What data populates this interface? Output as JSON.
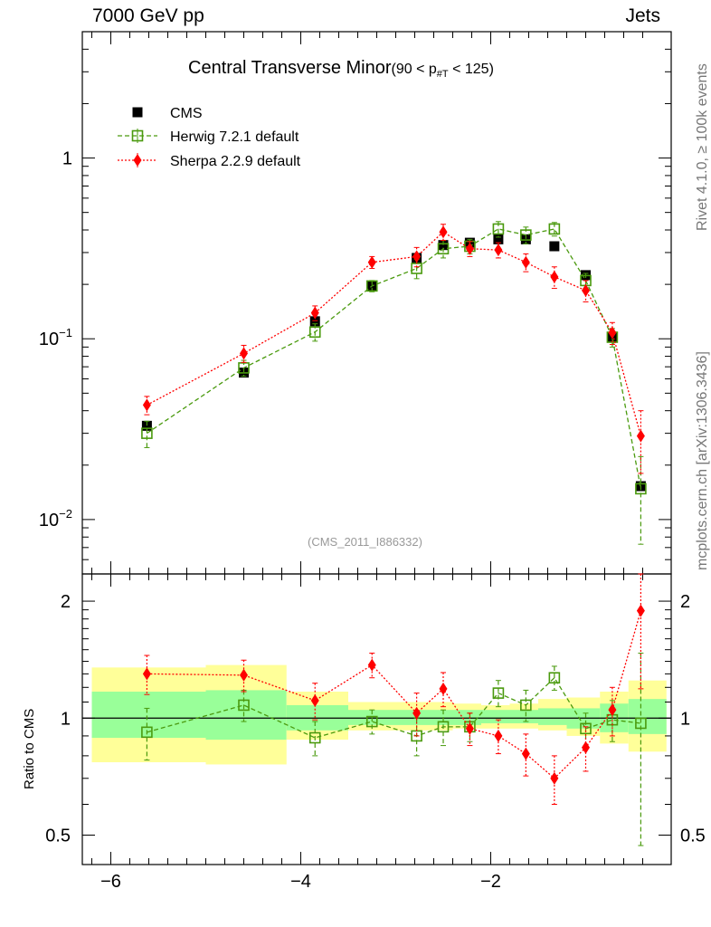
{
  "header": {
    "energy_label": "7000 GeV pp",
    "category_label": "Jets",
    "rivet_label": "Rivet 4.1.0, ≥ 100k events",
    "mcplots_label": "mcplots.cern.ch [arXiv:1306.3436]",
    "analysis_label": "(CMS_2011_I886332)"
  },
  "chart_data": {
    "type": "scatter",
    "title": "Central Transverse Minor",
    "title_cut": "(90 < p",
    "title_cut_sub": "#T",
    "title_cut_end": " < 125)",
    "xlim": [
      -6.3,
      -0.1
    ],
    "x_ticks": [
      -6,
      -4,
      -2
    ],
    "x_tick_labels": [
      "−6",
      "−4",
      "−2"
    ],
    "main_panel": {
      "yscale": "log",
      "ylim": [
        0.005,
        5
      ],
      "y_tick_labels": [
        {
          "value": 1,
          "base": "1",
          "exp": ""
        },
        {
          "value": 0.1,
          "base": "10",
          "exp": "−1"
        },
        {
          "value": 0.01,
          "base": "10",
          "exp": "−2"
        }
      ]
    },
    "ratio_panel": {
      "ylabel": "Ratio to CMS",
      "yscale": "log",
      "ylim": [
        0.42,
        2.35
      ],
      "y_tick_labels": [
        {
          "value": 2,
          "label": "2"
        },
        {
          "value": 1,
          "label": "1"
        },
        {
          "value": 0.5,
          "label": "0.5"
        }
      ],
      "band_bins": [
        {
          "lo": -6.2,
          "hi": -5.0,
          "stat": [
            0.89,
            1.17
          ],
          "total": [
            0.77,
            1.35
          ]
        },
        {
          "lo": -5.0,
          "hi": -4.15,
          "stat": [
            0.88,
            1.18
          ],
          "total": [
            0.76,
            1.37
          ]
        },
        {
          "lo": -4.15,
          "hi": -3.5,
          "stat": [
            0.93,
            1.08
          ],
          "total": [
            0.88,
            1.17
          ]
        },
        {
          "lo": -3.5,
          "hi": -2.9,
          "stat": [
            0.96,
            1.05
          ],
          "total": [
            0.93,
            1.1
          ]
        },
        {
          "lo": -2.9,
          "hi": -2.6,
          "stat": [
            0.96,
            1.05
          ],
          "total": [
            0.93,
            1.1
          ]
        },
        {
          "lo": -2.6,
          "hi": -2.4,
          "stat": [
            0.96,
            1.05
          ],
          "total": [
            0.93,
            1.1
          ]
        },
        {
          "lo": -2.4,
          "hi": -2.1,
          "stat": [
            0.96,
            1.05
          ],
          "total": [
            0.94,
            1.09
          ]
        },
        {
          "lo": -2.1,
          "hi": -1.8,
          "stat": [
            0.97,
            1.05
          ],
          "total": [
            0.94,
            1.08
          ]
        },
        {
          "lo": -1.8,
          "hi": -1.5,
          "stat": [
            0.97,
            1.05
          ],
          "total": [
            0.94,
            1.09
          ]
        },
        {
          "lo": -1.5,
          "hi": -1.2,
          "stat": [
            0.96,
            1.06
          ],
          "total": [
            0.93,
            1.12
          ]
        },
        {
          "lo": -1.2,
          "hi": -0.85,
          "stat": [
            0.94,
            1.06
          ],
          "total": [
            0.9,
            1.13
          ]
        },
        {
          "lo": -0.85,
          "hi": -0.55,
          "stat": [
            0.92,
            1.09
          ],
          "total": [
            0.86,
            1.17
          ]
        },
        {
          "lo": -0.55,
          "hi": -0.15,
          "stat": [
            0.91,
            1.12
          ],
          "total": [
            0.82,
            1.25
          ]
        }
      ]
    },
    "series": [
      {
        "name": "CMS",
        "color": "#000000",
        "marker": "filled-square",
        "x": [
          -5.62,
          -4.6,
          -3.85,
          -3.25,
          -2.78,
          -2.5,
          -2.22,
          -1.92,
          -1.63,
          -1.33,
          -1.0,
          -0.72,
          -0.42
        ],
        "y": [
          0.033,
          0.065,
          0.125,
          0.195,
          0.28,
          0.33,
          0.34,
          0.355,
          0.355,
          0.325,
          0.225,
          0.102,
          0.0153
        ]
      },
      {
        "name": "Herwig 7.2.1 default",
        "color": "#4a9a0e",
        "marker": "open-square",
        "x": [
          -5.62,
          -4.6,
          -3.85,
          -3.25,
          -2.78,
          -2.5,
          -2.22,
          -1.92,
          -1.63,
          -1.33,
          -1.0,
          -0.72,
          -0.42
        ],
        "y": [
          0.03,
          0.069,
          0.109,
          0.196,
          0.245,
          0.315,
          0.325,
          0.405,
          0.375,
          0.405,
          0.21,
          0.102,
          0.0148
        ],
        "y_err": [
          0.005,
          0.007,
          0.012,
          0.014,
          0.03,
          0.035,
          0.03,
          0.04,
          0.04,
          0.035,
          0.02,
          0.012,
          0.0075
        ],
        "ratio": [
          0.92,
          1.08,
          0.89,
          0.98,
          0.9,
          0.95,
          0.95,
          1.16,
          1.08,
          1.27,
          0.94,
          0.99,
          0.97
        ],
        "ratio_err": [
          0.14,
          0.1,
          0.09,
          0.07,
          0.1,
          0.1,
          0.08,
          0.09,
          0.1,
          0.09,
          0.09,
          0.12,
          0.5
        ]
      },
      {
        "name": "Sherpa 2.2.9 default",
        "color": "#ff0000",
        "marker": "diamond",
        "x": [
          -5.62,
          -4.6,
          -3.85,
          -3.25,
          -2.78,
          -2.5,
          -2.22,
          -1.92,
          -1.63,
          -1.33,
          -1.0,
          -0.72,
          -0.42
        ],
        "y": [
          0.043,
          0.083,
          0.139,
          0.265,
          0.285,
          0.39,
          0.315,
          0.31,
          0.265,
          0.22,
          0.185,
          0.108,
          0.029
        ],
        "y_err": [
          0.005,
          0.009,
          0.013,
          0.02,
          0.035,
          0.04,
          0.03,
          0.03,
          0.03,
          0.03,
          0.025,
          0.015,
          0.011
        ],
        "ratio": [
          1.3,
          1.29,
          1.11,
          1.37,
          1.03,
          1.19,
          0.94,
          0.9,
          0.81,
          0.7,
          0.84,
          1.05,
          1.89
        ],
        "ratio_err": [
          0.15,
          0.12,
          0.12,
          0.1,
          0.13,
          0.12,
          0.09,
          0.09,
          0.1,
          0.1,
          0.11,
          0.15,
          0.7
        ]
      }
    ]
  }
}
